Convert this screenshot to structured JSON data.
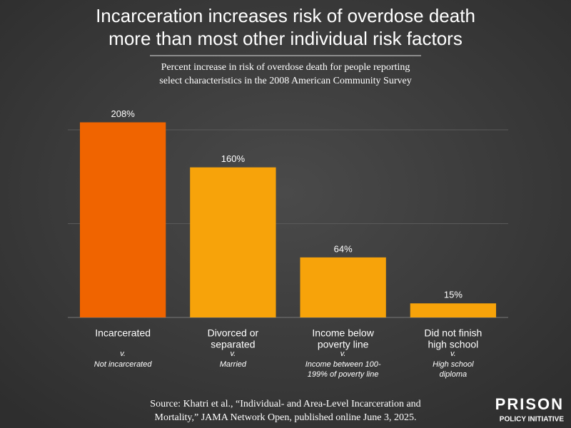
{
  "chart_data": {
    "type": "bar",
    "title": [
      "Incarceration increases risk of overdose death",
      "more than most other individual risk factors"
    ],
    "subtitle": [
      "Percent increase in risk of overdose death for people reporting",
      "select characteristics in the 2008 American Community Survey"
    ],
    "categories": [
      [
        "Incarcerated"
      ],
      [
        "Divorced or",
        "separated"
      ],
      [
        "Income below",
        "poverty line"
      ],
      [
        "Did not finish",
        "high school"
      ]
    ],
    "comparison_prefix": "v.",
    "comparisons": [
      [
        "Not incarcerated"
      ],
      [
        "Married"
      ],
      [
        "Income between 100-",
        "199% of poverty line"
      ],
      [
        "High school",
        "diploma"
      ]
    ],
    "values": [
      208,
      160,
      64,
      15
    ],
    "value_labels": [
      "208%",
      "160%",
      "64%",
      "15%"
    ],
    "colors": [
      "#f06400",
      "#f7a30a",
      "#f7a30a",
      "#f7a30a"
    ],
    "ylim": [
      0,
      200
    ],
    "yticks": [
      100,
      200
    ],
    "tick_labels": false,
    "grid": true,
    "source": [
      "Source: Khatri et al., “Individual- and Area-Level Incarceration and",
      "Mortality,” JAMA Network Open, published online June 3, 2025."
    ],
    "logo": [
      "PRISON",
      "POLICY INITIATIVE"
    ]
  }
}
